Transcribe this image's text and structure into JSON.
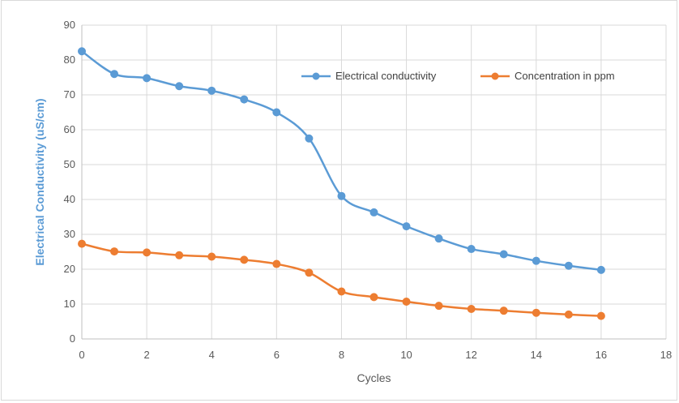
{
  "chart_data": {
    "type": "line",
    "xlabel": "Cycles",
    "ylabel": "Electrical Conductivity (uS/cm)",
    "xlim": [
      0,
      18
    ],
    "ylim": [
      0,
      90
    ],
    "x_ticks": [
      "0",
      "2",
      "4",
      "6",
      "8",
      "10",
      "12",
      "14",
      "16",
      "18"
    ],
    "y_ticks": [
      "0",
      "10",
      "20",
      "30",
      "40",
      "50",
      "60",
      "70",
      "80",
      "90"
    ],
    "grid": true,
    "smooth": true,
    "legend_position": "top-right",
    "x": [
      0,
      1,
      2,
      3,
      4,
      5,
      6,
      7,
      8,
      9,
      10,
      11,
      12,
      13,
      14,
      15,
      16
    ],
    "series": [
      {
        "name": "Electrical conductivity",
        "color": "#5b9bd5",
        "values": [
          82.5,
          76,
          74.8,
          72.5,
          71.2,
          68.7,
          65,
          57.5,
          41,
          36.3,
          32.3,
          28.8,
          25.8,
          24.3,
          22.4,
          21,
          19.8
        ]
      },
      {
        "name": "Concentration in ppm",
        "color": "#ed7d31",
        "values": [
          27.3,
          25.1,
          24.8,
          24,
          23.6,
          22.7,
          21.5,
          19,
          13.6,
          12,
          10.7,
          9.5,
          8.6,
          8.1,
          7.5,
          7,
          6.6
        ]
      }
    ]
  }
}
